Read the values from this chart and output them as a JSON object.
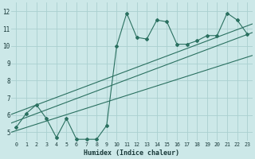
{
  "xlabel": "Humidex (Indice chaleur)",
  "bg_color": "#cce8e8",
  "grid_color": "#aad0d0",
  "line_color": "#2a7060",
  "xlim": [
    -0.5,
    23.5
  ],
  "ylim": [
    4.5,
    12.5
  ],
  "xticks": [
    0,
    1,
    2,
    3,
    4,
    5,
    6,
    7,
    8,
    9,
    10,
    11,
    12,
    13,
    14,
    15,
    16,
    17,
    18,
    19,
    20,
    21,
    22,
    23
  ],
  "yticks": [
    5,
    6,
    7,
    8,
    9,
    10,
    11,
    12
  ],
  "main_y": [
    5.3,
    6.1,
    6.6,
    5.8,
    4.7,
    5.8,
    4.6,
    4.6,
    4.6,
    5.4,
    10.0,
    11.9,
    10.5,
    10.4,
    11.5,
    11.4,
    10.1,
    10.1,
    10.3,
    10.6,
    10.6,
    11.9,
    11.5,
    10.7
  ],
  "trend1_slope": 0.218,
  "trend1_intercept": 6.15,
  "trend2_slope": 0.218,
  "trend2_intercept": 5.65,
  "trend3_slope": 0.185,
  "trend3_intercept": 5.1
}
